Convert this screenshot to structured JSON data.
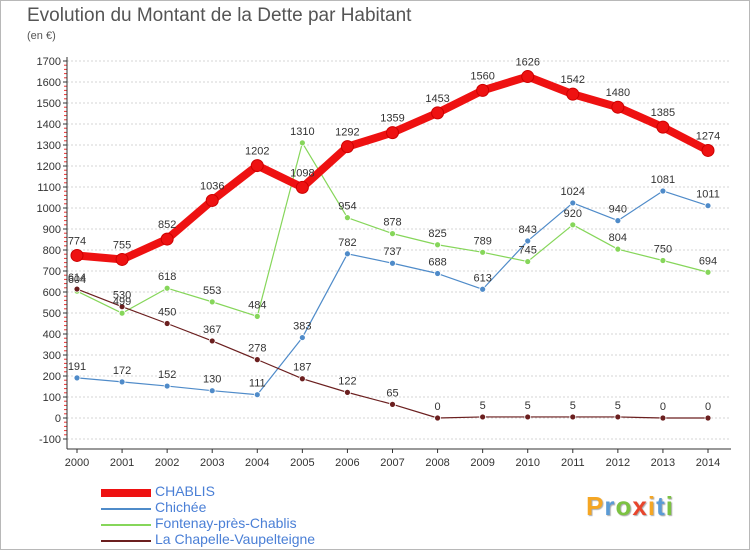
{
  "title": "Evolution du Montant de la Dette par Habitant",
  "unit": "(en €)",
  "brand": {
    "text": "Proxiti",
    "letter_colors": [
      "#f5a623",
      "#5b9bd5",
      "#7cc242",
      "#e8452c",
      "#f5a623",
      "#5b9bd5",
      "#7cc242"
    ]
  },
  "chart_data": {
    "type": "line",
    "title": "Evolution du Montant de la Dette par Habitant",
    "ylabel": "(en €)",
    "x": [
      2000,
      2001,
      2002,
      2003,
      2004,
      2005,
      2006,
      2007,
      2008,
      2009,
      2010,
      2011,
      2012,
      2013,
      2014
    ],
    "ylim": [
      -100,
      1700
    ],
    "yticks": [
      -100,
      0,
      100,
      200,
      300,
      400,
      500,
      600,
      700,
      800,
      900,
      1000,
      1100,
      1200,
      1300,
      1400,
      1500,
      1600,
      1700
    ],
    "grid": "horizontal",
    "legend_position": "bottom-left",
    "series": [
      {
        "name": "CHABLIS",
        "color": "#ee1111",
        "values": [
          774,
          755,
          852,
          1036,
          1202,
          1098,
          1292,
          1359,
          1453,
          1560,
          1626,
          1542,
          1480,
          1385,
          1274
        ]
      },
      {
        "name": "Chichée",
        "color": "#4f8bc9",
        "values": [
          191,
          172,
          152,
          130,
          111,
          383,
          782,
          737,
          688,
          613,
          843,
          1024,
          940,
          1081,
          1011
        ]
      },
      {
        "name": "Fontenay-près-Chablis",
        "color": "#86d65a",
        "values": [
          604,
          499,
          618,
          553,
          484,
          1310,
          954,
          878,
          825,
          789,
          745,
          920,
          804,
          750,
          694
        ]
      },
      {
        "name": "La Chapelle-Vaupelteigne",
        "color": "#6b1f1f",
        "values": [
          614,
          530,
          450,
          367,
          278,
          187,
          122,
          65,
          0,
          5,
          5,
          5,
          5,
          0,
          0
        ]
      }
    ]
  }
}
